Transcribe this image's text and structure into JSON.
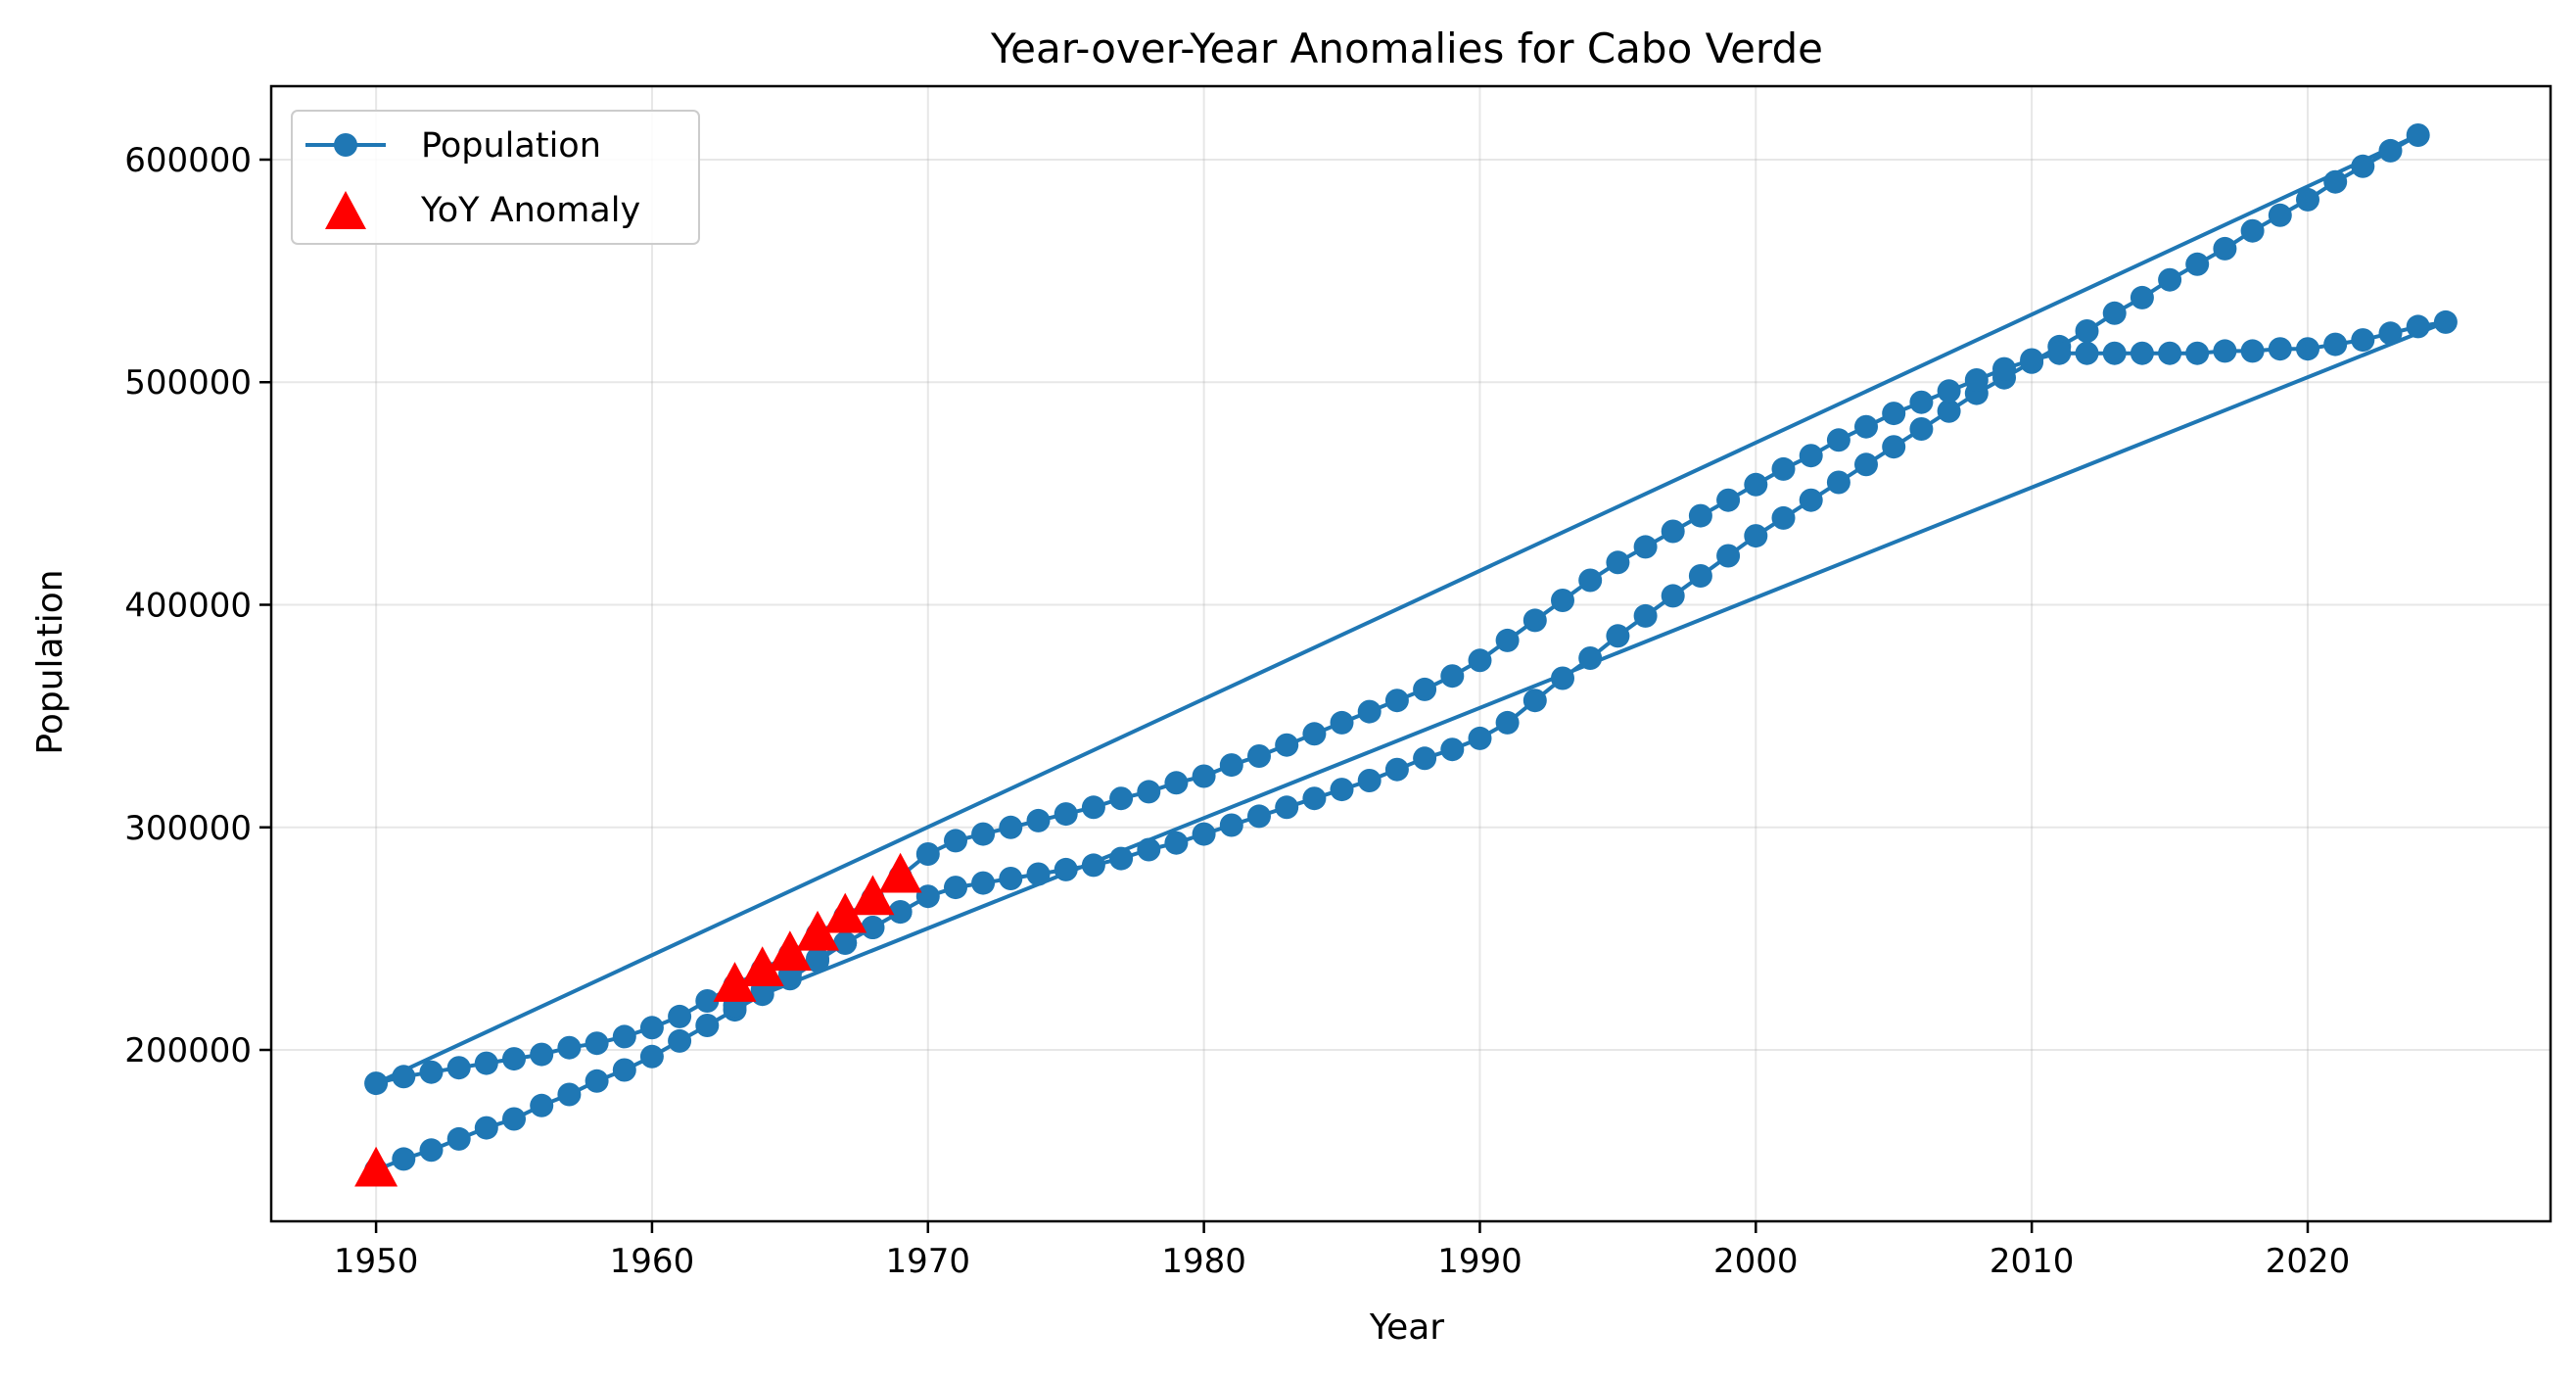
{
  "chart_data": {
    "type": "line",
    "title": "Year-over-Year Anomalies for Cabo Verde",
    "xlabel": "Year",
    "ylabel": "Population",
    "xlim": [
      1946.2,
      2028.8
    ],
    "ylim": [
      123000,
      633000
    ],
    "xticks": [
      1950,
      1960,
      1970,
      1980,
      1990,
      2000,
      2010,
      2020
    ],
    "yticks": [
      200000,
      300000,
      400000,
      500000,
      600000
    ],
    "xtick_labels": [
      "1950",
      "1960",
      "1970",
      "1980",
      "1990",
      "2000",
      "2010",
      "2020"
    ],
    "ytick_labels": [
      "200000",
      "300000",
      "400000",
      "500000",
      "600000"
    ],
    "grid": true,
    "legend_position": "top-left",
    "colors": {
      "population": "#1f77b4",
      "anomaly": "#ff0000"
    },
    "legend": [
      "Population",
      "YoY Anomaly"
    ],
    "series": [
      {
        "name": "Population",
        "x": [
          1950,
          1951,
          1952,
          1953,
          1954,
          1955,
          1956,
          1957,
          1958,
          1959,
          1960,
          1961,
          1962,
          1963,
          1964,
          1965,
          1966,
          1967,
          1968,
          1969,
          1970,
          1971,
          1972,
          1973,
          1974,
          1975,
          1976,
          1977,
          1978,
          1979,
          1980,
          1981,
          1982,
          1983,
          1984,
          1985,
          1986,
          1987,
          1988,
          1989,
          1990,
          1991,
          1992,
          1993,
          1994,
          1995,
          1996,
          1997,
          1998,
          1999,
          2000,
          2001,
          2002,
          2003,
          2004,
          2005,
          2006,
          2007,
          2008,
          2009,
          2010,
          2011,
          2012,
          2013,
          2014,
          2015,
          2016,
          2017,
          2018,
          2019,
          2020,
          2021,
          2022,
          2023,
          2024,
          1950,
          1951,
          1952,
          1953,
          1954,
          1955,
          1956,
          1957,
          1958,
          1959,
          1960,
          1961,
          1962,
          1963,
          1964,
          1965,
          1966,
          1967,
          1968,
          1969,
          1970,
          1971,
          1972,
          1973,
          1974,
          1975,
          1976,
          1977,
          1978,
          1979,
          1980,
          1981,
          1982,
          1983,
          1984,
          1985,
          1986,
          1987,
          1988,
          1989,
          1990,
          1991,
          1992,
          1993,
          1994,
          1995,
          1996,
          1997,
          1998,
          1999,
          2000,
          2001,
          2002,
          2003,
          2004,
          2005,
          2006,
          2007,
          2008,
          2009,
          2010,
          2011,
          2012,
          2013,
          2014,
          2015,
          2016,
          2017,
          2018,
          2019,
          2020,
          2021,
          2022,
          2023,
          2024,
          2025,
          1963,
          1964,
          1965,
          1966,
          1967,
          1968,
          1969
        ],
        "y": [
          146000,
          151000,
          155000,
          160000,
          165000,
          169000,
          175000,
          180000,
          186000,
          191000,
          197000,
          204000,
          211000,
          218000,
          225000,
          232000,
          240000,
          248000,
          255000,
          262000,
          269000,
          273000,
          275000,
          277000,
          279000,
          281000,
          283000,
          286000,
          290000,
          293000,
          297000,
          301000,
          305000,
          309000,
          313000,
          317000,
          321000,
          326000,
          331000,
          335000,
          340000,
          347000,
          357000,
          367000,
          376000,
          386000,
          395000,
          404000,
          413000,
          422000,
          431000,
          439000,
          447000,
          455000,
          463000,
          471000,
          479000,
          487000,
          495000,
          502000,
          509000,
          516000,
          523000,
          531000,
          538000,
          546000,
          553000,
          560000,
          568000,
          575000,
          582000,
          590000,
          597000,
          604000,
          611000,
          185000,
          188000,
          190000,
          192000,
          194000,
          196000,
          198000,
          201000,
          203000,
          206000,
          210000,
          215000,
          222000,
          229000,
          236000,
          243000,
          252000,
          260000,
          268000,
          278000,
          288000,
          294000,
          297000,
          300000,
          303000,
          306000,
          309000,
          313000,
          316000,
          320000,
          323000,
          328000,
          332000,
          337000,
          342000,
          347000,
          352000,
          357000,
          362000,
          368000,
          375000,
          384000,
          393000,
          402000,
          411000,
          419000,
          426000,
          433000,
          440000,
          447000,
          454000,
          461000,
          467000,
          474000,
          480000,
          486000,
          491000,
          496000,
          501000,
          506000,
          510000,
          513000,
          513000,
          513000,
          513000,
          513000,
          513000,
          514000,
          514000,
          515000,
          515000,
          517000,
          519000,
          522000,
          525000,
          527000,
          220000,
          227000,
          234000,
          241000,
          248000,
          255000,
          262000
        ]
      },
      {
        "name": "YoY Anomaly",
        "x": [
          1950,
          1963,
          1964,
          1965,
          1966,
          1967,
          1968,
          1969
        ],
        "y": [
          146000,
          229000,
          236000,
          243000,
          252000,
          260000,
          268000,
          278000
        ]
      }
    ]
  }
}
